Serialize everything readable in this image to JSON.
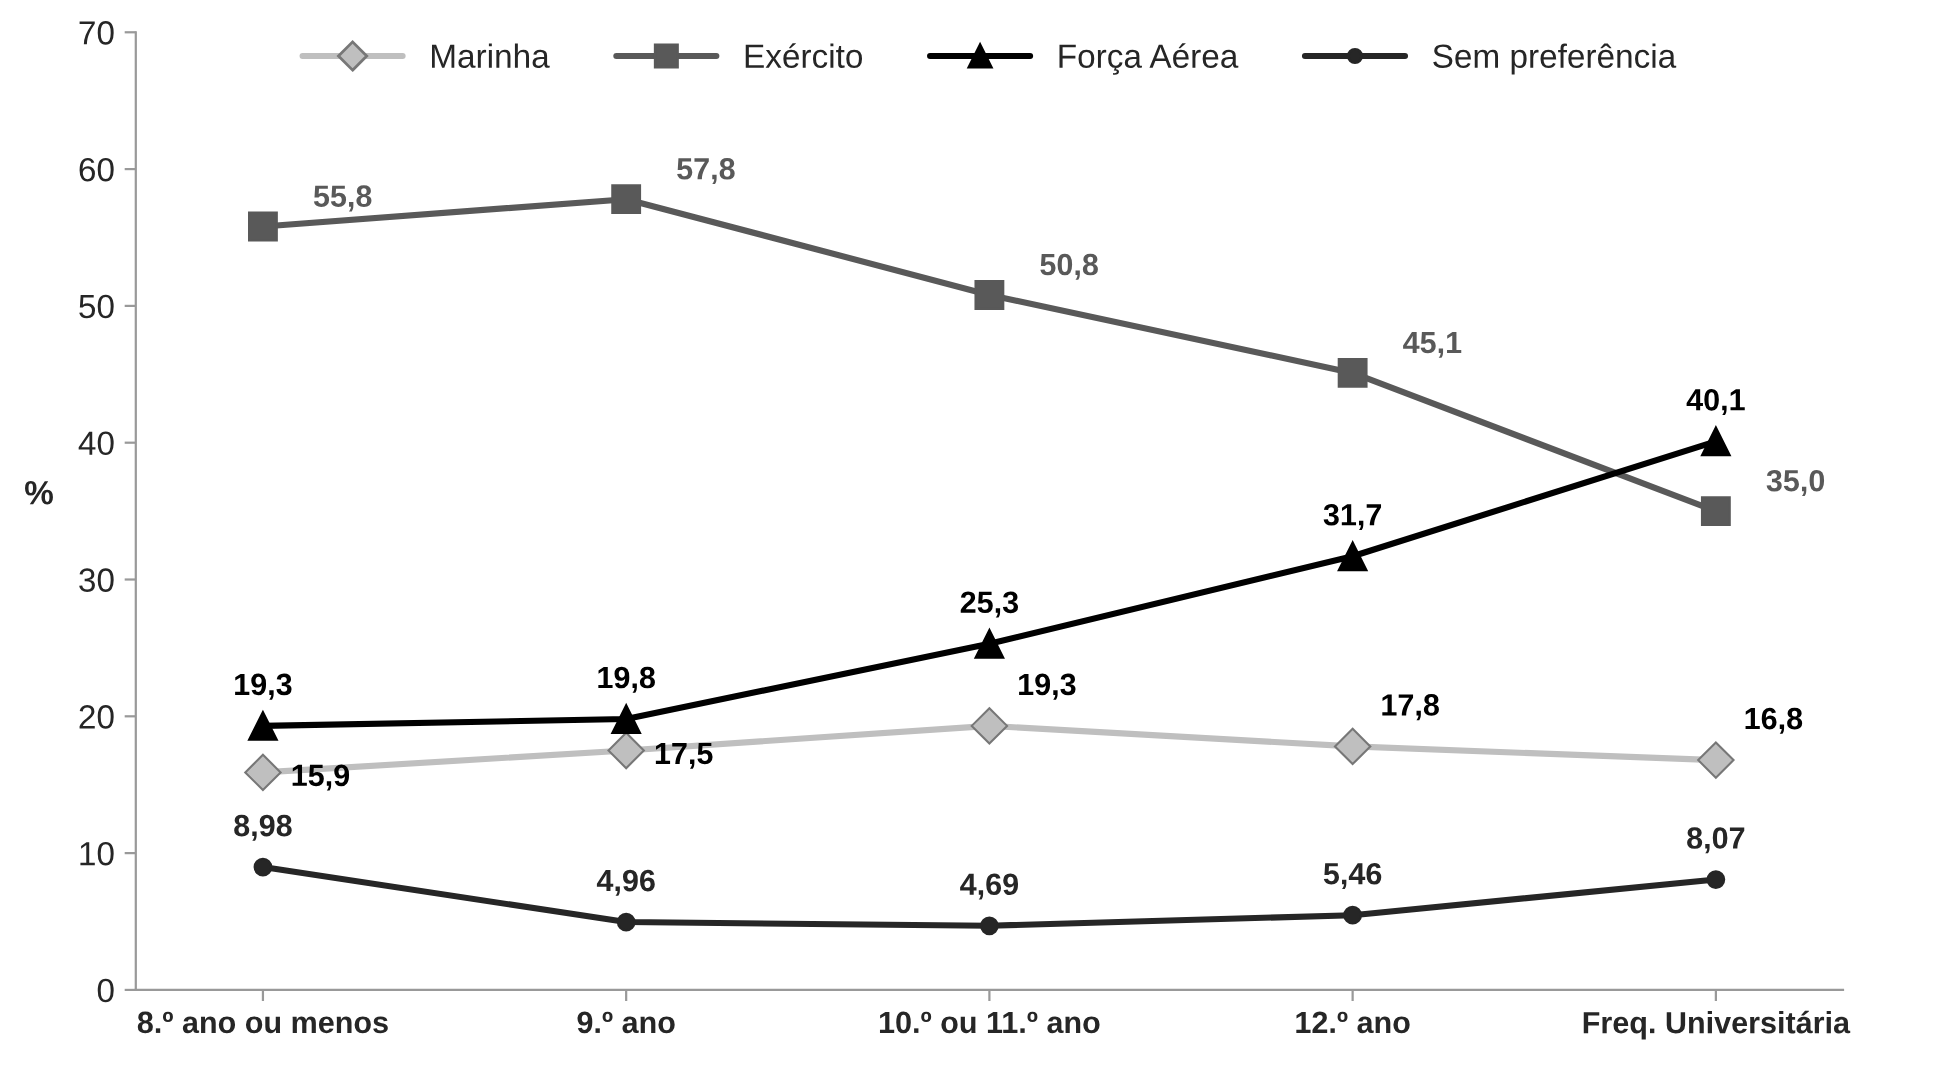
{
  "chart_data": {
    "type": "line",
    "ylabel": "%",
    "categories": [
      "8.º ano ou menos",
      "9.º ano",
      "10.º ou 11.º ano",
      "12.º ano",
      "Freq. Universitária"
    ],
    "series": [
      {
        "name": "Marinha",
        "color": "#bfbfbf",
        "marker": "diamond",
        "values": [
          15.9,
          17.5,
          19.3,
          17.8,
          16.8
        ],
        "value_labels": [
          "15,9",
          "17,5",
          "19,3",
          "17,8",
          "16,8"
        ]
      },
      {
        "name": "Exército",
        "color": "#595959",
        "marker": "square",
        "values": [
          55.8,
          57.8,
          50.8,
          45.1,
          35.0
        ],
        "value_labels": [
          "55,8",
          "57,8",
          "50,8",
          "45,1",
          "35,0"
        ]
      },
      {
        "name": "Força Aérea",
        "color": "#000000",
        "marker": "triangle",
        "values": [
          19.3,
          19.8,
          25.3,
          31.7,
          40.1
        ],
        "value_labels": [
          "19,3",
          "19,8",
          "25,3",
          "31,7",
          "40,1"
        ]
      },
      {
        "name": "Sem preferência",
        "color": "#262626",
        "marker": "circle",
        "values": [
          8.98,
          4.96,
          4.69,
          5.46,
          8.07
        ],
        "value_labels": [
          "8,98",
          "4,96",
          "4,69",
          "5,46",
          "8,07"
        ]
      }
    ],
    "ylim": [
      0,
      70
    ],
    "yticks": [
      0,
      10,
      20,
      30,
      40,
      50,
      60,
      70
    ],
    "grid": false,
    "legend": "top",
    "line_style": "solid"
  }
}
